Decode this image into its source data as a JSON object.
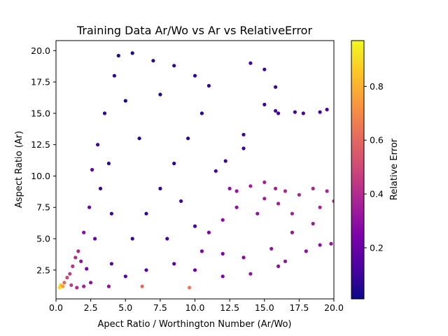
{
  "chart_data": {
    "type": "scatter",
    "title": "Training Data Ar/Wo vs Ar vs RelativeError",
    "xlabel": "Apect Ratio / Worthington Number (Ar/Wo)",
    "ylabel": "Aspect Ratio (Ar)",
    "colorbar_label": "Relative Error",
    "colormap": "plasma",
    "xlim": [
      0,
      20
    ],
    "ylim": [
      0.2,
      20.8
    ],
    "clim": [
      0.01,
      0.97
    ],
    "xticks": [
      "0.0",
      "2.5",
      "5.0",
      "7.5",
      "10.0",
      "12.5",
      "15.0",
      "17.5",
      "20.0"
    ],
    "yticks": [
      "2.5",
      "5.0",
      "7.5",
      "10.0",
      "12.5",
      "15.0",
      "17.5",
      "20.0"
    ],
    "cticks": [
      "0.2",
      "0.4",
      "0.6",
      "0.8"
    ],
    "grid": false,
    "points": [
      {
        "x": 0.25,
        "y": 1.1,
        "c": 0.9
      },
      {
        "x": 0.35,
        "y": 1.3,
        "c": 0.85
      },
      {
        "x": 0.5,
        "y": 1.2,
        "c": 0.75
      },
      {
        "x": 0.6,
        "y": 1.5,
        "c": 0.6
      },
      {
        "x": 0.8,
        "y": 1.9,
        "c": 0.5
      },
      {
        "x": 1.0,
        "y": 2.2,
        "c": 0.45
      },
      {
        "x": 1.2,
        "y": 2.8,
        "c": 0.42
      },
      {
        "x": 1.4,
        "y": 3.5,
        "c": 0.4
      },
      {
        "x": 1.6,
        "y": 4.0,
        "c": 0.38
      },
      {
        "x": 1.1,
        "y": 1.3,
        "c": 0.45
      },
      {
        "x": 1.5,
        "y": 1.1,
        "c": 0.4
      },
      {
        "x": 2.0,
        "y": 1.2,
        "c": 0.35
      },
      {
        "x": 2.5,
        "y": 1.5,
        "c": 0.3
      },
      {
        "x": 3.8,
        "y": 1.2,
        "c": 0.3
      },
      {
        "x": 6.2,
        "y": 1.2,
        "c": 0.6
      },
      {
        "x": 9.6,
        "y": 1.1,
        "c": 0.65
      },
      {
        "x": 2.0,
        "y": 5.5,
        "c": 0.28
      },
      {
        "x": 2.4,
        "y": 7.5,
        "c": 0.2
      },
      {
        "x": 2.6,
        "y": 10.5,
        "c": 0.18
      },
      {
        "x": 3.0,
        "y": 12.5,
        "c": 0.1
      },
      {
        "x": 3.5,
        "y": 15.0,
        "c": 0.08
      },
      {
        "x": 4.2,
        "y": 18.0,
        "c": 0.06
      },
      {
        "x": 4.5,
        "y": 19.6,
        "c": 0.05
      },
      {
        "x": 5.5,
        "y": 19.8,
        "c": 0.04
      },
      {
        "x": 7.0,
        "y": 19.2,
        "c": 0.06
      },
      {
        "x": 8.5,
        "y": 18.8,
        "c": 0.08
      },
      {
        "x": 10.0,
        "y": 18.0,
        "c": 0.08
      },
      {
        "x": 11.0,
        "y": 17.2,
        "c": 0.08
      },
      {
        "x": 14.0,
        "y": 19.0,
        "c": 0.1
      },
      {
        "x": 15.0,
        "y": 18.5,
        "c": 0.1
      },
      {
        "x": 15.8,
        "y": 17.1,
        "c": 0.1
      },
      {
        "x": 15.0,
        "y": 15.7,
        "c": 0.1
      },
      {
        "x": 15.8,
        "y": 15.2,
        "c": 0.12
      },
      {
        "x": 16.0,
        "y": 15.0,
        "c": 0.12
      },
      {
        "x": 17.2,
        "y": 15.1,
        "c": 0.12
      },
      {
        "x": 17.8,
        "y": 15.0,
        "c": 0.12
      },
      {
        "x": 19.0,
        "y": 15.1,
        "c": 0.12
      },
      {
        "x": 19.5,
        "y": 15.3,
        "c": 0.12
      },
      {
        "x": 13.5,
        "y": 12.2,
        "c": 0.1
      },
      {
        "x": 13.5,
        "y": 13.3,
        "c": 0.1
      },
      {
        "x": 12.2,
        "y": 11.2,
        "c": 0.1
      },
      {
        "x": 11.5,
        "y": 10.4,
        "c": 0.12
      },
      {
        "x": 12.5,
        "y": 9.0,
        "c": 0.3
      },
      {
        "x": 13.0,
        "y": 8.8,
        "c": 0.32
      },
      {
        "x": 14.0,
        "y": 9.2,
        "c": 0.35
      },
      {
        "x": 15.0,
        "y": 9.5,
        "c": 0.36
      },
      {
        "x": 15.8,
        "y": 9.0,
        "c": 0.36
      },
      {
        "x": 16.5,
        "y": 8.8,
        "c": 0.38
      },
      {
        "x": 17.5,
        "y": 8.5,
        "c": 0.38
      },
      {
        "x": 18.5,
        "y": 9.0,
        "c": 0.38
      },
      {
        "x": 19.5,
        "y": 8.8,
        "c": 0.38
      },
      {
        "x": 20.0,
        "y": 8.0,
        "c": 0.38
      },
      {
        "x": 19.0,
        "y": 7.5,
        "c": 0.36
      },
      {
        "x": 17.0,
        "y": 7.0,
        "c": 0.35
      },
      {
        "x": 16.0,
        "y": 7.8,
        "c": 0.35
      },
      {
        "x": 15.0,
        "y": 8.2,
        "c": 0.34
      },
      {
        "x": 14.5,
        "y": 7.0,
        "c": 0.3
      },
      {
        "x": 13.0,
        "y": 7.5,
        "c": 0.3
      },
      {
        "x": 12.0,
        "y": 6.5,
        "c": 0.28
      },
      {
        "x": 11.0,
        "y": 5.5,
        "c": 0.25
      },
      {
        "x": 10.5,
        "y": 4.0,
        "c": 0.25
      },
      {
        "x": 12.0,
        "y": 3.8,
        "c": 0.25
      },
      {
        "x": 13.5,
        "y": 3.5,
        "c": 0.28
      },
      {
        "x": 15.5,
        "y": 4.2,
        "c": 0.3
      },
      {
        "x": 16.5,
        "y": 3.2,
        "c": 0.3
      },
      {
        "x": 18.0,
        "y": 4.0,
        "c": 0.3
      },
      {
        "x": 19.0,
        "y": 4.5,
        "c": 0.3
      },
      {
        "x": 19.8,
        "y": 4.6,
        "c": 0.3
      },
      {
        "x": 17.0,
        "y": 5.5,
        "c": 0.32
      },
      {
        "x": 18.5,
        "y": 6.2,
        "c": 0.34
      },
      {
        "x": 16.0,
        "y": 2.8,
        "c": 0.3
      },
      {
        "x": 14.0,
        "y": 2.2,
        "c": 0.3
      },
      {
        "x": 12.0,
        "y": 2.0,
        "c": 0.25
      },
      {
        "x": 10.0,
        "y": 2.5,
        "c": 0.2
      },
      {
        "x": 8.5,
        "y": 3.0,
        "c": 0.15
      },
      {
        "x": 6.5,
        "y": 2.5,
        "c": 0.15
      },
      {
        "x": 5.0,
        "y": 2.0,
        "c": 0.15
      },
      {
        "x": 4.0,
        "y": 3.0,
        "c": 0.15
      },
      {
        "x": 5.5,
        "y": 5.0,
        "c": 0.1
      },
      {
        "x": 6.5,
        "y": 7.0,
        "c": 0.08
      },
      {
        "x": 7.5,
        "y": 9.0,
        "c": 0.08
      },
      {
        "x": 8.5,
        "y": 11.0,
        "c": 0.06
      },
      {
        "x": 9.5,
        "y": 13.0,
        "c": 0.06
      },
      {
        "x": 10.5,
        "y": 15.0,
        "c": 0.06
      },
      {
        "x": 6.0,
        "y": 13.0,
        "c": 0.05
      },
      {
        "x": 5.0,
        "y": 16.0,
        "c": 0.05
      },
      {
        "x": 7.5,
        "y": 16.5,
        "c": 0.05
      },
      {
        "x": 9.0,
        "y": 8.0,
        "c": 0.1
      },
      {
        "x": 10.0,
        "y": 6.0,
        "c": 0.12
      },
      {
        "x": 8.0,
        "y": 5.0,
        "c": 0.12
      },
      {
        "x": 3.2,
        "y": 9.0,
        "c": 0.1
      },
      {
        "x": 3.8,
        "y": 11.0,
        "c": 0.08
      },
      {
        "x": 4.0,
        "y": 7.0,
        "c": 0.1
      },
      {
        "x": 2.8,
        "y": 5.0,
        "c": 0.2
      },
      {
        "x": 1.8,
        "y": 3.2,
        "c": 0.3
      },
      {
        "x": 2.2,
        "y": 2.6,
        "c": 0.25
      }
    ]
  }
}
